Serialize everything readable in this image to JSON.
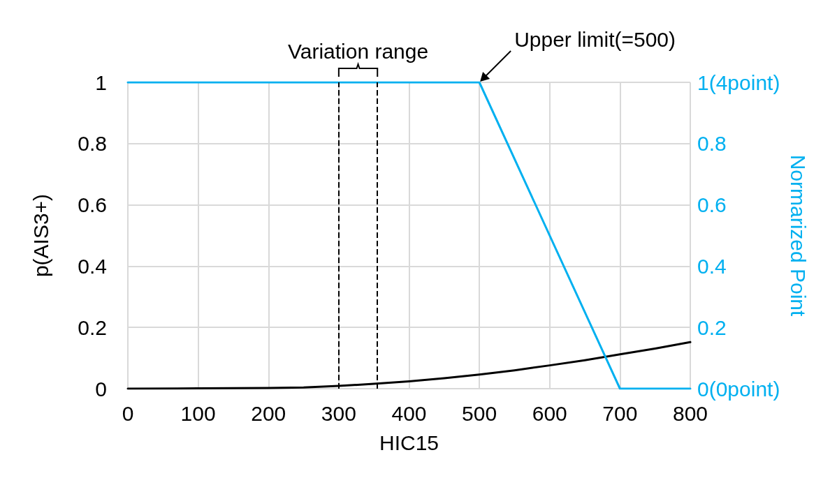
{
  "chart_data": {
    "type": "line",
    "xlabel": "HIC15",
    "ylabel": "p(AIS3+)",
    "y2label": "Normarized Point",
    "xlim": [
      0,
      800
    ],
    "xticks": [
      0,
      100,
      200,
      300,
      400,
      500,
      600,
      700,
      800
    ],
    "ylim": [
      0,
      1
    ],
    "yticks": [
      0,
      0.2,
      0.4,
      0.6,
      0.8,
      1
    ],
    "y2lim": [
      0,
      1
    ],
    "y2ticks": [
      {
        "value": 0,
        "label": "0(0point)"
      },
      0.2,
      0.4,
      0.6,
      0.8,
      {
        "value": 1,
        "label": "1(4point)"
      }
    ],
    "grid": true,
    "marker": "none",
    "line_style": "solid",
    "series": [
      {
        "color": "#000000",
        "x": [
          0,
          100,
          200,
          250,
          300,
          350,
          400,
          450,
          500,
          550,
          600,
          650,
          700,
          750,
          800
        ],
        "values": [
          0,
          0.001,
          0.002,
          0.004,
          0.009,
          0.016,
          0.024,
          0.034,
          0.046,
          0.06,
          0.076,
          0.093,
          0.112,
          0.131,
          0.152
        ]
      },
      {
        "color": "#00b0f0",
        "axis": "y2",
        "x": [
          0,
          500,
          700,
          800
        ],
        "values": [
          1,
          1,
          0,
          0
        ]
      }
    ],
    "ref_lines": [
      {
        "axis": "x",
        "value": 300,
        "color": "#000000",
        "line_style": "dashed"
      },
      {
        "axis": "x",
        "value": 355,
        "color": "#000000",
        "line_style": "dashed"
      }
    ],
    "annotations": [
      "Variation range",
      "Upper limit(=500)"
    ]
  }
}
